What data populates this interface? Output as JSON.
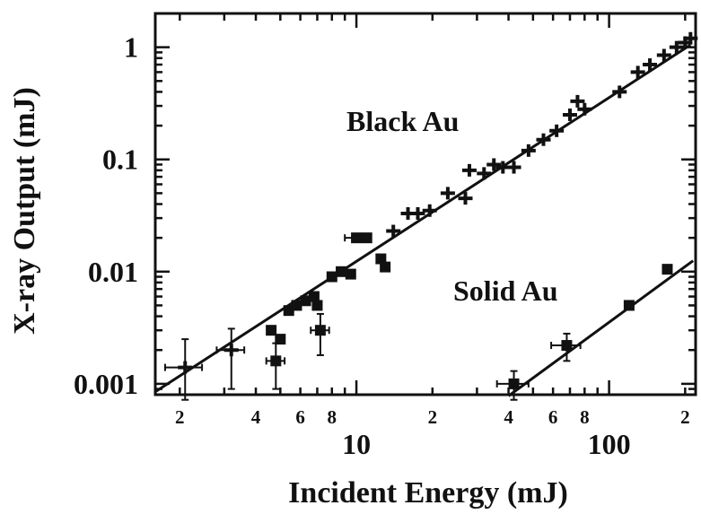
{
  "chart_data": {
    "type": "scatter",
    "title": "",
    "xlabel": "Incident Energy (mJ)",
    "ylabel": "X-ray Output (mJ)",
    "xscale": "log",
    "yscale": "log",
    "xlim": [
      1.6,
      220
    ],
    "ylim": [
      0.0008,
      2
    ],
    "grid": false,
    "x_major_ticks": [
      {
        "value": 10,
        "label": "10"
      },
      {
        "value": 100,
        "label": "100"
      }
    ],
    "x_minor_ticks": [
      {
        "value": 2,
        "label": "2"
      },
      {
        "value": 4,
        "label": "4"
      },
      {
        "value": 6,
        "label": "6"
      },
      {
        "value": 8,
        "label": "8"
      },
      {
        "value": 20,
        "label": "2"
      },
      {
        "value": 40,
        "label": "4"
      },
      {
        "value": 60,
        "label": "6"
      },
      {
        "value": 80,
        "label": "8"
      },
      {
        "value": 200,
        "label": "2"
      }
    ],
    "y_ticks": [
      {
        "value": 0.001,
        "label": "0.001"
      },
      {
        "value": 0.01,
        "label": "0.01"
      },
      {
        "value": 0.1,
        "label": "0.1"
      },
      {
        "value": 1,
        "label": "1"
      }
    ],
    "series": [
      {
        "name": "Black Au",
        "fit_line": [
          [
            1.6,
            0.00085
          ],
          [
            210,
            1.05
          ]
        ],
        "points": [
          {
            "x": 2.1,
            "y": 0.0014,
            "xerr": 0.35,
            "yerr": 0.0011,
            "marker": "cross"
          },
          {
            "x": 3.2,
            "y": 0.002,
            "xerr": 0.4,
            "yerr": 0.0011,
            "marker": "cross"
          },
          {
            "x": 4.6,
            "y": 0.003,
            "marker": "square"
          },
          {
            "x": 4.8,
            "y": 0.0016,
            "xerr": 0.4,
            "yerr": 0.0007,
            "marker": "square"
          },
          {
            "x": 5.0,
            "y": 0.0025,
            "marker": "square"
          },
          {
            "x": 5.4,
            "y": 0.0045,
            "marker": "square"
          },
          {
            "x": 5.8,
            "y": 0.005,
            "marker": "square"
          },
          {
            "x": 6.3,
            "y": 0.0055,
            "marker": "square"
          },
          {
            "x": 6.8,
            "y": 0.006,
            "marker": "square"
          },
          {
            "x": 7.2,
            "y": 0.003,
            "xerr": 0.6,
            "yerr": 0.0012,
            "marker": "square"
          },
          {
            "x": 7.0,
            "y": 0.005,
            "marker": "square"
          },
          {
            "x": 8.0,
            "y": 0.009,
            "marker": "square"
          },
          {
            "x": 8.7,
            "y": 0.01,
            "marker": "square"
          },
          {
            "x": 9.5,
            "y": 0.0095,
            "marker": "square"
          },
          {
            "x": 10.0,
            "y": 0.02,
            "xerr": 1.0,
            "marker": "square"
          },
          {
            "x": 11.0,
            "y": 0.02,
            "marker": "square"
          },
          {
            "x": 12.5,
            "y": 0.013,
            "marker": "square"
          },
          {
            "x": 13.0,
            "y": 0.011,
            "marker": "square"
          },
          {
            "x": 14.0,
            "y": 0.023,
            "marker": "cross"
          },
          {
            "x": 16.0,
            "y": 0.033,
            "marker": "cross"
          },
          {
            "x": 17.5,
            "y": 0.033,
            "marker": "cross"
          },
          {
            "x": 19.5,
            "y": 0.035,
            "marker": "cross"
          },
          {
            "x": 23.0,
            "y": 0.05,
            "marker": "cross"
          },
          {
            "x": 27.0,
            "y": 0.045,
            "marker": "cross"
          },
          {
            "x": 28.0,
            "y": 0.08,
            "marker": "cross"
          },
          {
            "x": 32.0,
            "y": 0.075,
            "marker": "cross"
          },
          {
            "x": 35.0,
            "y": 0.09,
            "marker": "cross"
          },
          {
            "x": 38.0,
            "y": 0.085,
            "marker": "cross"
          },
          {
            "x": 42.0,
            "y": 0.085,
            "marker": "cross"
          },
          {
            "x": 48.0,
            "y": 0.12,
            "marker": "cross"
          },
          {
            "x": 55.0,
            "y": 0.15,
            "marker": "cross"
          },
          {
            "x": 62.0,
            "y": 0.18,
            "marker": "cross"
          },
          {
            "x": 70.0,
            "y": 0.25,
            "marker": "cross"
          },
          {
            "x": 75.0,
            "y": 0.33,
            "marker": "cross"
          },
          {
            "x": 80.0,
            "y": 0.28,
            "marker": "cross"
          },
          {
            "x": 110.0,
            "y": 0.4,
            "marker": "cross"
          },
          {
            "x": 130.0,
            "y": 0.6,
            "marker": "cross"
          },
          {
            "x": 145.0,
            "y": 0.7,
            "marker": "cross"
          },
          {
            "x": 165.0,
            "y": 0.85,
            "marker": "cross"
          },
          {
            "x": 185.0,
            "y": 1.0,
            "marker": "cross"
          },
          {
            "x": 200.0,
            "y": 1.1,
            "marker": "cross"
          },
          {
            "x": 210.0,
            "y": 1.2,
            "marker": "cross"
          }
        ]
      },
      {
        "name": "Solid Au",
        "fit_line": [
          [
            40,
            0.00078
          ],
          [
            215,
            0.0125
          ]
        ],
        "points": [
          {
            "x": 42.0,
            "y": 0.001,
            "xerr": 6,
            "yerr": 0.0003,
            "marker": "square"
          },
          {
            "x": 68.0,
            "y": 0.0022,
            "xerr": 9,
            "yerr": 0.0006,
            "marker": "square"
          },
          {
            "x": 120.0,
            "y": 0.005,
            "marker": "square"
          },
          {
            "x": 170.0,
            "y": 0.0105,
            "marker": "square"
          }
        ]
      }
    ]
  }
}
